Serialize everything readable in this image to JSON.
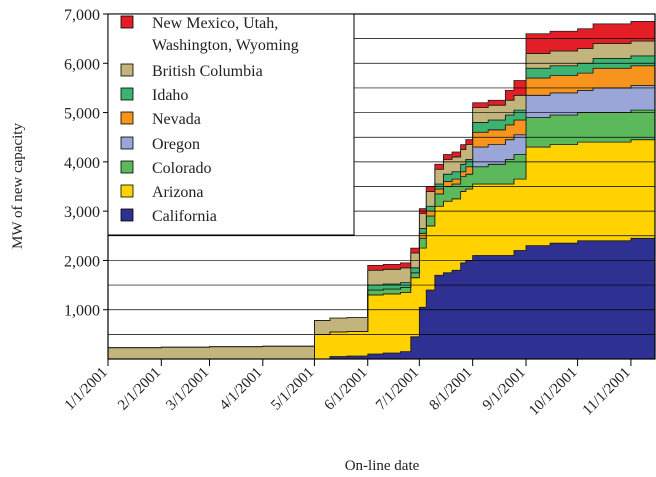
{
  "chart_data": {
    "type": "area",
    "stacked": true,
    "xlabel": "On-line date",
    "ylabel": "MW of new capacity",
    "y_tick_labels": [
      "1,000",
      "2,000",
      "3,000",
      "4,000",
      "5,000",
      "6,000",
      "7,000"
    ],
    "y_ticks": [
      1000,
      2000,
      3000,
      4000,
      5000,
      6000,
      7000
    ],
    "ylim": [
      0,
      7000
    ],
    "x_tick_labels": [
      "1/1/2001",
      "2/1/2001",
      "3/1/2001",
      "4/1/2001",
      "5/1/2001",
      "6/1/2001",
      "7/1/2001",
      "8/1/2001",
      "9/1/2001",
      "10/1/2001",
      "11/1/2001"
    ],
    "x_ticks": [
      "2001-01-01",
      "2001-02-01",
      "2001-03-01",
      "2001-04-01",
      "2001-05-01",
      "2001-06-01",
      "2001-07-01",
      "2001-08-01",
      "2001-09-01",
      "2001-10-01",
      "2001-11-01"
    ],
    "xlim": [
      "2001-01-01",
      "2001-11-15"
    ],
    "grid": "horizontal",
    "legend_position": "top-left",
    "legend_order": [
      "New Mexico, Utah, Washington, Wyoming",
      "British Columbia",
      "Idaho",
      "Nevada",
      "Oregon",
      "Colorado",
      "Arizona",
      "California"
    ],
    "x": [
      "2001-01-01",
      "2001-02-01",
      "2001-03-01",
      "2001-04-01",
      "2001-05-01",
      "2001-05-10",
      "2001-05-20",
      "2001-06-01",
      "2001-06-10",
      "2001-06-20",
      "2001-06-26",
      "2001-07-01",
      "2001-07-05",
      "2001-07-10",
      "2001-07-15",
      "2001-07-20",
      "2001-07-25",
      "2001-07-28",
      "2001-08-01",
      "2001-08-10",
      "2001-08-20",
      "2001-08-25",
      "2001-09-01",
      "2001-09-15",
      "2001-10-01",
      "2001-10-10",
      "2001-10-20",
      "2001-11-01",
      "2001-11-15"
    ],
    "series": [
      {
        "name": "California",
        "color": "#2E3192",
        "values": [
          0,
          0,
          0,
          0,
          0,
          50,
          60,
          100,
          120,
          150,
          450,
          1050,
          1400,
          1700,
          1750,
          1800,
          1950,
          2000,
          2100,
          2100,
          2100,
          2200,
          2300,
          2350,
          2400,
          2400,
          2400,
          2450,
          2500
        ]
      },
      {
        "name": "Arizona",
        "color": "#FFD200",
        "values": [
          0,
          0,
          0,
          0,
          500,
          500,
          500,
          1200,
          1200,
          1200,
          1200,
          1200,
          1300,
          1400,
          1450,
          1450,
          1450,
          1450,
          1450,
          1450,
          1450,
          1450,
          2000,
          2000,
          2000,
          2000,
          2000,
          2000,
          2000
        ]
      },
      {
        "name": "Colorado",
        "color": "#5BB85B",
        "values": [
          0,
          0,
          0,
          0,
          0,
          0,
          0,
          100,
          100,
          100,
          100,
          200,
          200,
          250,
          300,
          300,
          300,
          300,
          350,
          400,
          500,
          500,
          600,
          600,
          600,
          600,
          600,
          600,
          600
        ]
      },
      {
        "name": "Oregon",
        "color": "#9AA5D8",
        "values": [
          0,
          0,
          0,
          0,
          0,
          0,
          0,
          0,
          0,
          0,
          0,
          0,
          0,
          0,
          0,
          0,
          0,
          0,
          400,
          400,
          400,
          400,
          450,
          450,
          450,
          500,
          500,
          500,
          500
        ]
      },
      {
        "name": "Nevada",
        "color": "#F7941D",
        "values": [
          0,
          0,
          0,
          0,
          0,
          0,
          0,
          0,
          0,
          0,
          0,
          100,
          100,
          100,
          100,
          100,
          100,
          150,
          300,
          300,
          300,
          300,
          350,
          350,
          350,
          400,
          400,
          400,
          400
        ]
      },
      {
        "name": "Idaho",
        "color": "#3CB371",
        "values": [
          0,
          0,
          0,
          0,
          0,
          0,
          0,
          100,
          100,
          100,
          100,
          100,
          100,
          100,
          150,
          150,
          150,
          150,
          200,
          200,
          200,
          200,
          200,
          200,
          200,
          200,
          200,
          200,
          200
        ]
      },
      {
        "name": "British Columbia",
        "color": "#C2B47A",
        "values": [
          230,
          240,
          250,
          260,
          280,
          280,
          280,
          300,
          300,
          300,
          300,
          300,
          300,
          300,
          300,
          300,
          300,
          300,
          300,
          300,
          300,
          300,
          300,
          300,
          300,
          300,
          300,
          300,
          300
        ]
      },
      {
        "name": "New Mexico, Utah, Washington, Wyoming",
        "color": "#E41E26",
        "values": [
          0,
          0,
          0,
          0,
          0,
          0,
          0,
          100,
          100,
          100,
          100,
          100,
          100,
          100,
          100,
          100,
          100,
          100,
          100,
          100,
          200,
          300,
          400,
          400,
          400,
          400,
          400,
          400,
          450
        ]
      }
    ]
  }
}
